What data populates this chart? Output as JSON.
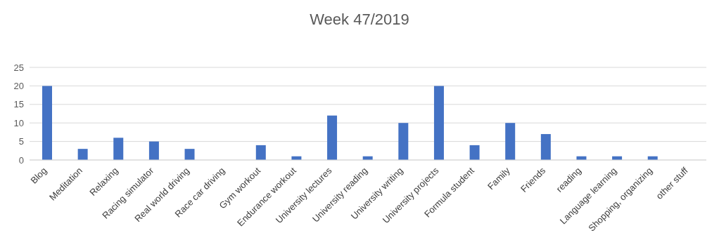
{
  "chart_data": {
    "type": "bar",
    "title": "Week 47/2019",
    "categories": [
      "Blog",
      "Meditation",
      "Relaxing",
      "Racing simulator",
      "Real world driving",
      "Race car driving",
      "Gym workout",
      "Endurance workout",
      "University lectures",
      "University reading",
      "University writing",
      "University projects",
      "Formula student",
      "Family",
      "Friends",
      "reading",
      "Language learning",
      "Shopping, organizing",
      "other stuff"
    ],
    "values": [
      20,
      3,
      6,
      5,
      3,
      0,
      4,
      1,
      12,
      1,
      10,
      20,
      4,
      10,
      7,
      1,
      1,
      1,
      0
    ],
    "color": "#4472c4",
    "ylim": [
      0,
      25
    ],
    "yticks": [
      0,
      5,
      10,
      15,
      20,
      25
    ],
    "grid": "y",
    "legend": false
  }
}
